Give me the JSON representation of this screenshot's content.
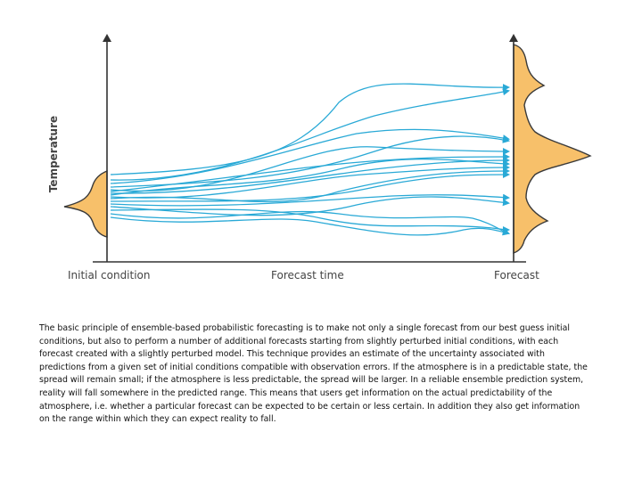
{
  "diagram": {
    "y_axis_label": "Temperature",
    "x_labels": {
      "initial": "Initial condition",
      "middle": "Forecast time",
      "final": "Forecast"
    },
    "colors": {
      "axis": "#333333",
      "trajectory": "#29a9d6",
      "distribution_fill": "#f7c06a",
      "distribution_outline": "#3a3a3a"
    }
  },
  "caption": "The basic principle of ensemble-based probabilistic forecasting is to make not only a single forecast from our best guess initial conditions, but also to perform a number of additional forecasts starting from slightly perturbed initial conditions, with each forecast created with a slightly perturbed model. This technique provides an estimate of the uncertainty associated with predictions from a given set of initial conditions compatible with observation errors. If the atmosphere is in a predictable state, the spread will remain small; if the atmosphere is less predictable, the spread will be larger. In a reliable ensemble prediction system, reality will fall somewhere in the predicted range. This means that users get information on the actual predictability of the atmosphere, i.e. whether a particular forecast can be expected to be certain or less certain. In addition they also get information on the range within which they can expect reality to fall."
}
